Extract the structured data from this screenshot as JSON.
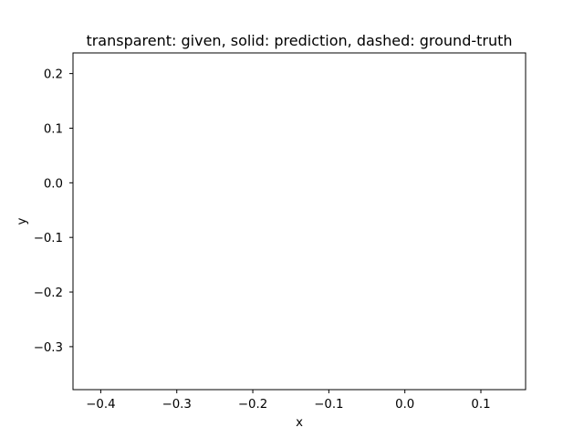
{
  "chart_data": {
    "type": "line",
    "title": "transparent: given, solid: prediction, dashed: ground-truth",
    "xlabel": "x",
    "ylabel": "y",
    "xlim": [
      -0.4365,
      0.1588
    ],
    "ylim": [
      -0.3787,
      0.2378
    ],
    "xticks": [
      -0.4,
      -0.3,
      -0.2,
      -0.1,
      0.0,
      0.1
    ],
    "xtick_labels": [
      "−0.4",
      "−0.3",
      "−0.2",
      "−0.1",
      "0.0",
      "0.1"
    ],
    "yticks": [
      0.2,
      0.1,
      0.0,
      -0.1,
      -0.2,
      -0.3
    ],
    "ytick_labels": [
      "0.2",
      "0.1",
      "0.0",
      "−0.1",
      "−0.2",
      "−0.3"
    ],
    "grid": false,
    "legend": "none",
    "series": []
  }
}
